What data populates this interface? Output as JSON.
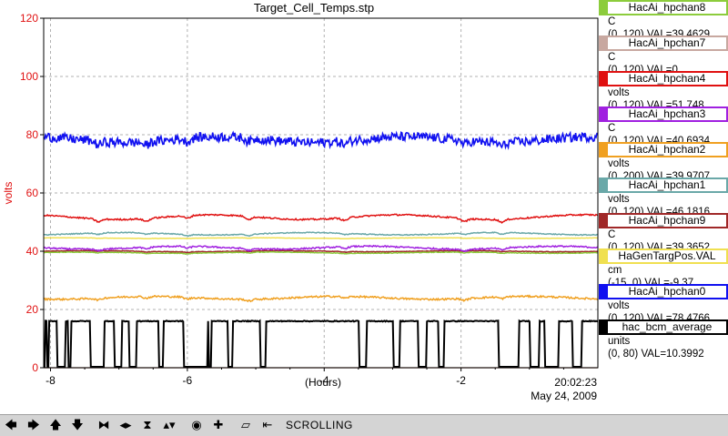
{
  "chart_data": {
    "type": "line",
    "title": "Target_Cell_Temps.stp",
    "xlabel": "(Hours)",
    "ylabel": "volts",
    "xlim": [
      -8.1,
      0
    ],
    "ylim": [
      0,
      120
    ],
    "x_ticks": [
      "-8",
      "-6",
      "-4",
      "-2"
    ],
    "y_ticks": [
      "0",
      "20",
      "40",
      "60",
      "80",
      "100",
      "120"
    ],
    "grid": true,
    "time_label": "20:02:23",
    "date_label": "May 24, 2009",
    "series": [
      {
        "name": "HacAi_hpchan8",
        "unit": "C",
        "range": "(0, 120)",
        "val": "VAL=39.4629",
        "color": "#8ccc3c",
        "level": 39.5,
        "amp": 0.2,
        "noise": 0.1
      },
      {
        "name": "HacAi_hpchan7",
        "unit": "C",
        "range": "(0, 120)",
        "val": "VAL=0",
        "color": "#c8a8a0",
        "level": 0,
        "amp": 0,
        "noise": 0
      },
      {
        "name": "HacAi_hpchan4",
        "unit": "volts",
        "range": "(0, 120)",
        "val": "VAL=51.748",
        "color": "#e01010",
        "level": 51.7,
        "amp": 0.8,
        "noise": 0.25
      },
      {
        "name": "HacAi_hpchan3",
        "unit": "C",
        "range": "(0, 120)",
        "val": "VAL=40.6934",
        "color": "#a020e0",
        "level": 41.2,
        "amp": 0.5,
        "noise": 0.25
      },
      {
        "name": "HacAi_hpchan2",
        "unit": "volts",
        "range": "(0, 200)",
        "val": "VAL=39.9707",
        "color": "#f0a020",
        "level": 24,
        "amp": 0.5,
        "noise": 0.3
      },
      {
        "name": "HacAi_hpchan1",
        "unit": "volts",
        "range": "(0, 120)",
        "val": "VAL=46.1816",
        "color": "#6aa8a8",
        "level": 46,
        "amp": 0.4,
        "noise": 0.15
      },
      {
        "name": "HacAi_hpchan9",
        "unit": "C",
        "range": "(0, 120)",
        "val": "VAL=39.3652",
        "color": "#a02828",
        "level": 40,
        "amp": 0.2,
        "noise": 0.1
      },
      {
        "name": "HaGenTargPos.VAL",
        "unit": "cm",
        "range": "(-15, 0)",
        "val": "VAL=-9.37",
        "color": "#f0e050",
        "level": 44.5,
        "amp": 0.1,
        "noise": 0.05
      },
      {
        "name": "HacAi_hpchan0",
        "unit": "volts",
        "range": "(0, 120)",
        "val": "VAL=78.4766",
        "color": "#1010f0",
        "level": 78.3,
        "amp": 1.0,
        "noise": 1.6
      },
      {
        "name": "hac_bcm_average",
        "unit": "units",
        "range": "(0, 80)",
        "val": "VAL=10.3992",
        "color": "#000000",
        "level": 16,
        "amp": 0,
        "noise": 0.3
      }
    ]
  },
  "toolbar": {
    "icons": [
      "arrow-left-icon",
      "arrow-right-icon",
      "arrow-up-icon",
      "arrow-down-icon",
      "zoom-in-horizontal-icon",
      "zoom-out-horizontal-icon",
      "zoom-in-vertical-icon",
      "zoom-out-vertical-icon",
      "reset-zoom-icon",
      "add-marker-icon",
      "autoscale-icon",
      "undo-zoom-icon"
    ],
    "glyphs": [
      "🡄",
      "🡆",
      "🡅",
      "🡇",
      "⧓",
      "◂▸",
      "⧗",
      "▴▾",
      "◉",
      "✚",
      "⏥",
      "⇤"
    ],
    "status": "SCROLLING"
  }
}
